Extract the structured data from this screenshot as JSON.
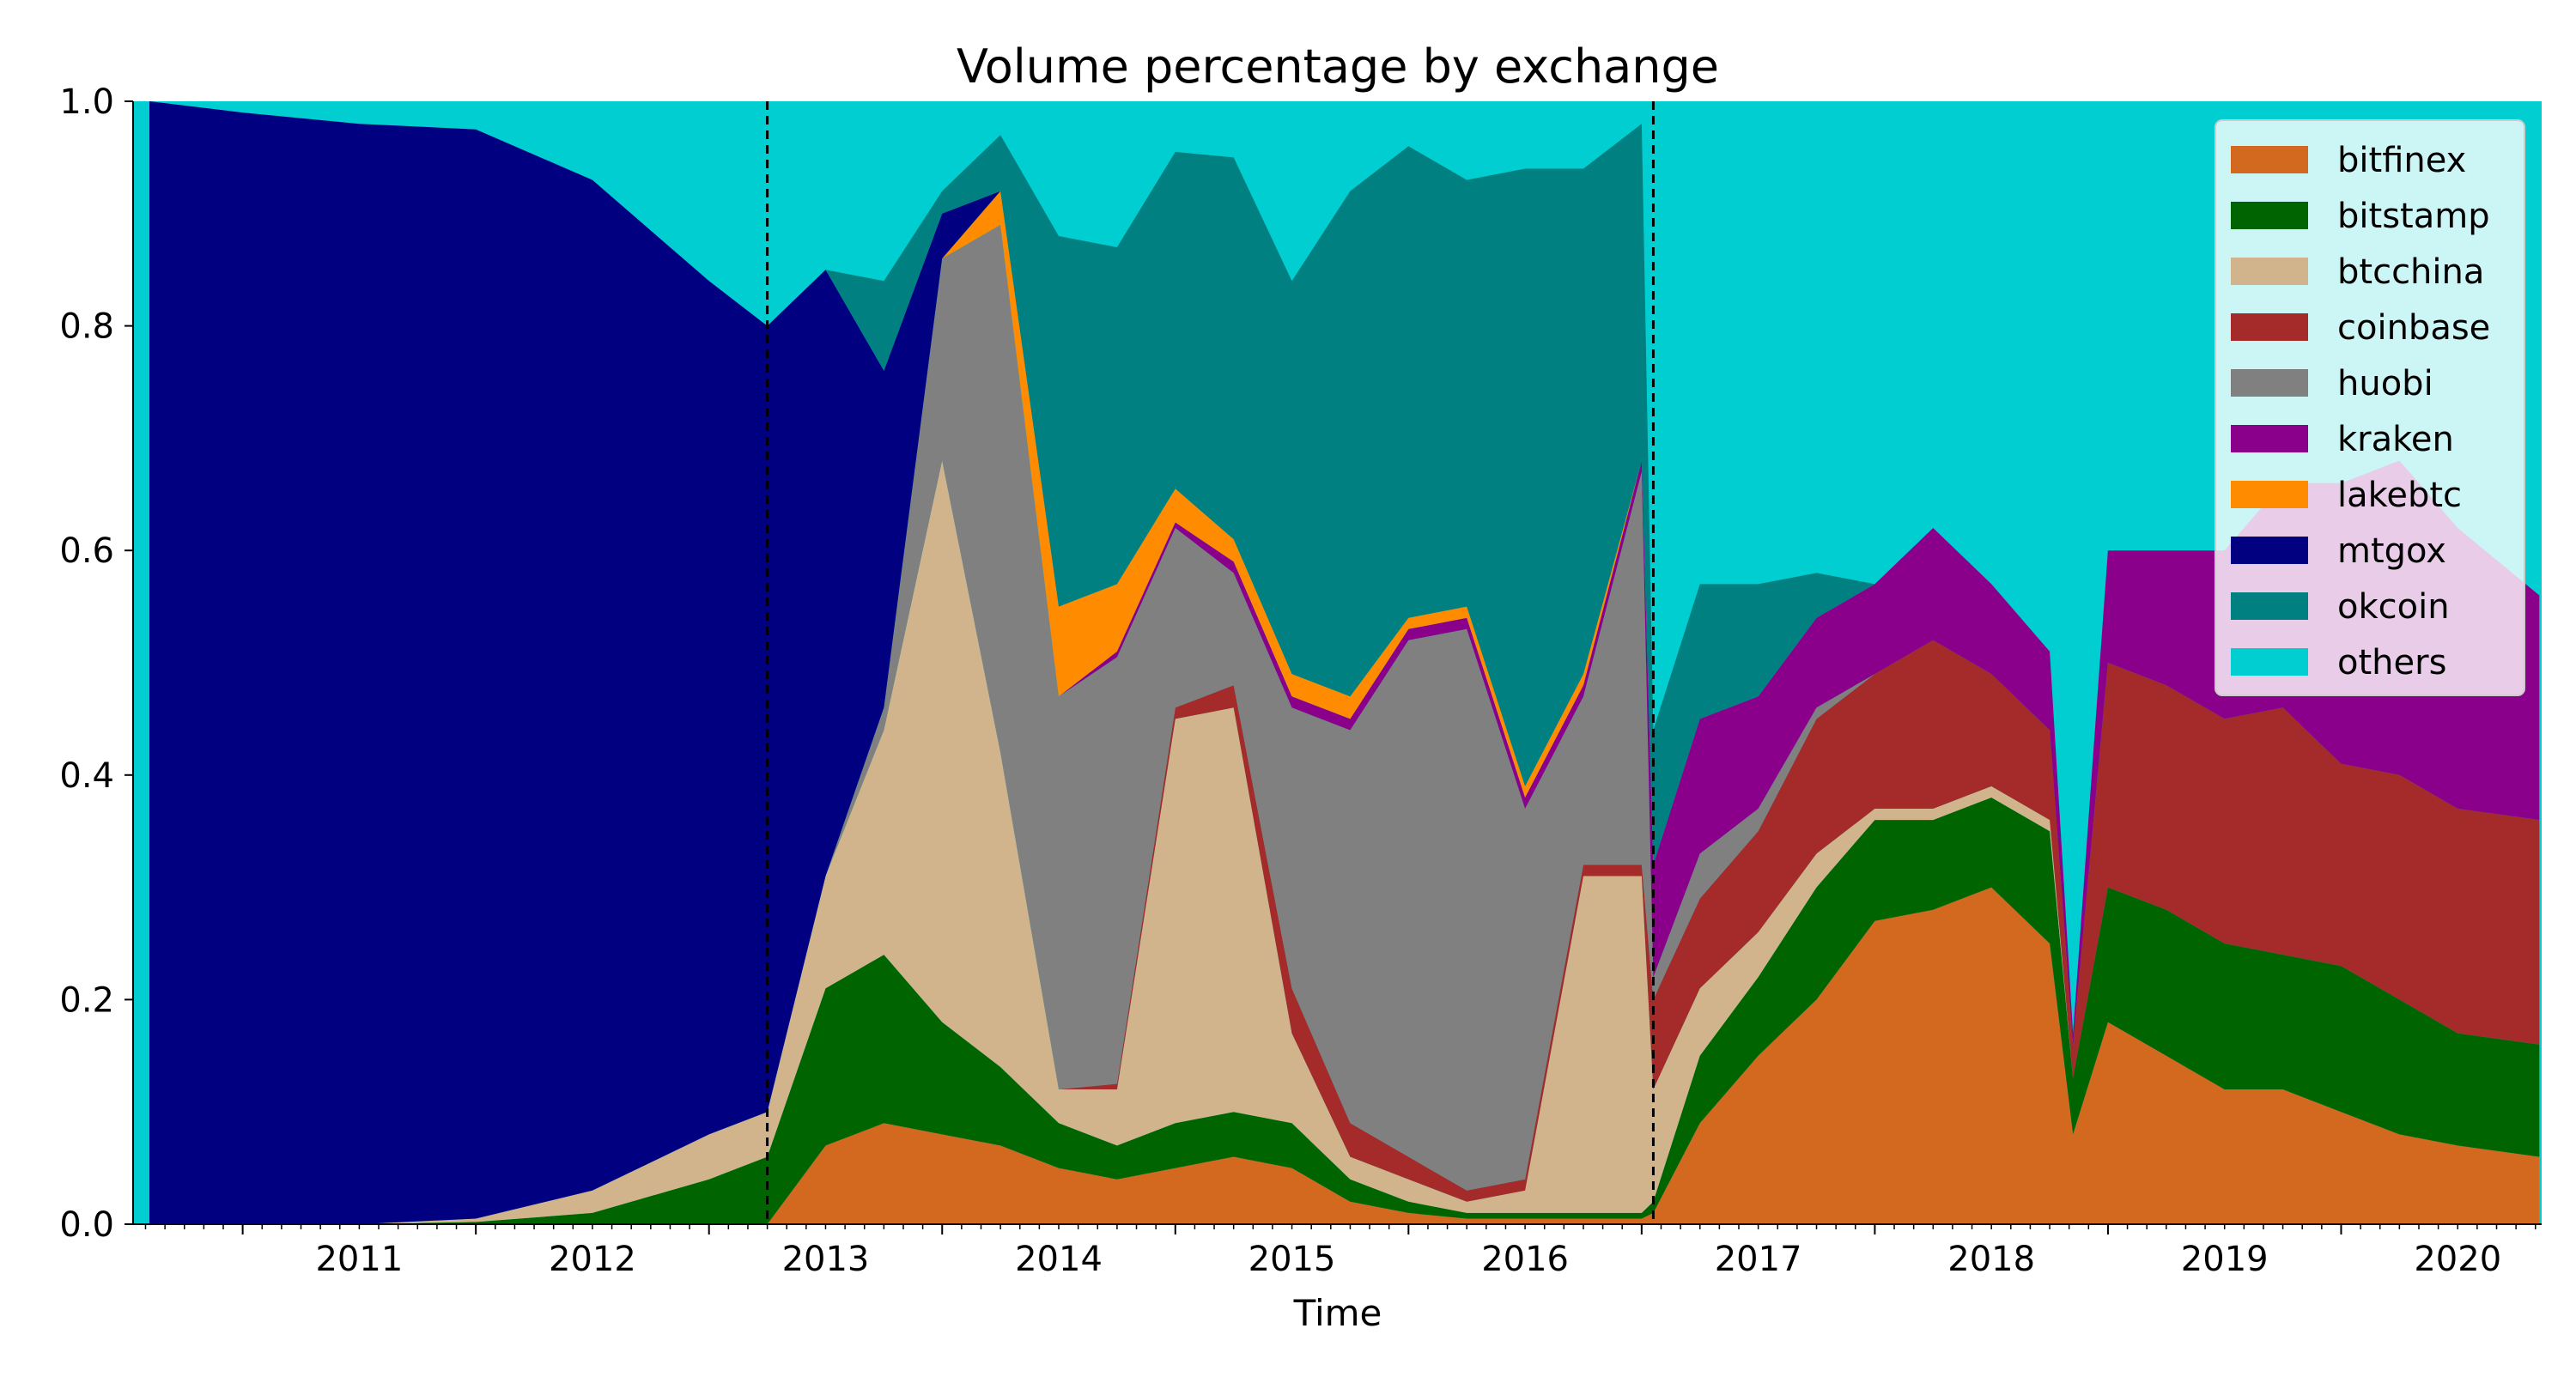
{
  "chart_data": {
    "type": "area",
    "stacked": true,
    "normalized": true,
    "title": "Volume percentage by exchange",
    "xlabel": "Time",
    "ylabel": "",
    "x_ticks": [
      "2011",
      "2012",
      "2013",
      "2014",
      "2015",
      "2016",
      "2017",
      "2018",
      "2019",
      "2020"
    ],
    "y_ticks": [
      "0.0",
      "0.2",
      "0.4",
      "0.6",
      "0.8",
      "1.0"
    ],
    "xlim": [
      2010.53,
      2020.86
    ],
    "ylim": [
      0,
      1
    ],
    "grid": false,
    "legend_position": "top-right",
    "reference_lines": [
      2013.25,
      2017.05
    ],
    "x": [
      2010.6,
      2011.0,
      2011.5,
      2012.0,
      2012.5,
      2013.0,
      2013.25,
      2013.5,
      2013.75,
      2014.0,
      2014.25,
      2014.5,
      2014.75,
      2015.0,
      2015.25,
      2015.5,
      2015.75,
      2016.0,
      2016.25,
      2016.5,
      2016.75,
      2017.0,
      2017.05,
      2017.25,
      2017.5,
      2017.75,
      2018.0,
      2018.25,
      2018.5,
      2018.75,
      2018.85,
      2019.0,
      2019.25,
      2019.5,
      2019.75,
      2020.0,
      2020.25,
      2020.5,
      2020.85
    ],
    "series": [
      {
        "name": "bitfinex",
        "color": "#d2691e",
        "values": [
          0,
          0,
          0,
          0,
          0,
          0,
          0,
          0.07,
          0.09,
          0.08,
          0.07,
          0.05,
          0.04,
          0.05,
          0.06,
          0.05,
          0.02,
          0.01,
          0.005,
          0.005,
          0.005,
          0.005,
          0.01,
          0.09,
          0.15,
          0.2,
          0.27,
          0.28,
          0.3,
          0.25,
          0.08,
          0.18,
          0.15,
          0.12,
          0.12,
          0.1,
          0.08,
          0.07,
          0.06
        ]
      },
      {
        "name": "bitstamp",
        "color": "#006400",
        "values": [
          0,
          0,
          0,
          0.002,
          0.01,
          0.04,
          0.06,
          0.14,
          0.15,
          0.1,
          0.07,
          0.04,
          0.03,
          0.04,
          0.04,
          0.04,
          0.02,
          0.01,
          0.005,
          0.005,
          0.005,
          0.005,
          0.01,
          0.06,
          0.07,
          0.1,
          0.09,
          0.08,
          0.08,
          0.1,
          0.05,
          0.12,
          0.13,
          0.13,
          0.12,
          0.13,
          0.12,
          0.1,
          0.1
        ]
      },
      {
        "name": "btcchina",
        "color": "#d2b48c",
        "values": [
          0,
          0,
          0,
          0.003,
          0.02,
          0.04,
          0.04,
          0.1,
          0.2,
          0.5,
          0.28,
          0.03,
          0.05,
          0.36,
          0.36,
          0.08,
          0.02,
          0.02,
          0.01,
          0.02,
          0.3,
          0.3,
          0.1,
          0.06,
          0.04,
          0.03,
          0.01,
          0.01,
          0.01,
          0.01,
          0.0,
          0.0,
          0.0,
          0.0,
          0.0,
          0.0,
          0.0,
          0.0,
          0.0
        ]
      },
      {
        "name": "coinbase",
        "color": "#a52a2a",
        "values": [
          0,
          0,
          0,
          0,
          0,
          0,
          0,
          0,
          0,
          0,
          0,
          0,
          0.005,
          0.01,
          0.02,
          0.04,
          0.03,
          0.02,
          0.01,
          0.01,
          0.01,
          0.01,
          0.08,
          0.08,
          0.09,
          0.12,
          0.12,
          0.15,
          0.1,
          0.08,
          0.03,
          0.2,
          0.2,
          0.2,
          0.22,
          0.18,
          0.2,
          0.2,
          0.2
        ]
      },
      {
        "name": "huobi",
        "color": "#808080",
        "values": [
          0,
          0,
          0,
          0,
          0,
          0,
          0,
          0,
          0.02,
          0.18,
          0.47,
          0.35,
          0.38,
          0.16,
          0.1,
          0.25,
          0.35,
          0.46,
          0.5,
          0.33,
          0.15,
          0.35,
          0.02,
          0.04,
          0.02,
          0.01,
          0.0,
          0.0,
          0.0,
          0.0,
          0.0,
          0.0,
          0.0,
          0.0,
          0.0,
          0.0,
          0.0,
          0.0,
          0.0
        ]
      },
      {
        "name": "kraken",
        "color": "#8b008b",
        "values": [
          0,
          0,
          0,
          0,
          0,
          0,
          0,
          0,
          0,
          0,
          0,
          0,
          0.005,
          0.005,
          0.01,
          0.01,
          0.01,
          0.01,
          0.01,
          0.01,
          0.01,
          0.01,
          0.1,
          0.12,
          0.1,
          0.08,
          0.08,
          0.1,
          0.08,
          0.07,
          0.01,
          0.1,
          0.12,
          0.15,
          0.2,
          0.25,
          0.28,
          0.25,
          0.2
        ]
      },
      {
        "name": "lakebtc",
        "color": "#ff8c00",
        "values": [
          0,
          0,
          0,
          0,
          0,
          0,
          0,
          0,
          0,
          0,
          0.03,
          0.08,
          0.06,
          0.03,
          0.02,
          0.02,
          0.02,
          0.01,
          0.01,
          0.01,
          0.01,
          0.0,
          0.0,
          0.0,
          0.0,
          0.0,
          0.0,
          0.0,
          0.0,
          0.0,
          0.0,
          0.0,
          0.0,
          0.0,
          0.0,
          0.0,
          0.0,
          0.0,
          0.0
        ]
      },
      {
        "name": "mtgox",
        "color": "#000080",
        "values": [
          1.0,
          0.99,
          0.98,
          0.97,
          0.9,
          0.76,
          0.7,
          0.54,
          0.3,
          0.04,
          0.0,
          0.0,
          0.0,
          0.0,
          0.0,
          0.0,
          0.0,
          0.0,
          0.0,
          0.0,
          0.0,
          0.0,
          0.0,
          0.0,
          0.0,
          0.0,
          0.0,
          0.0,
          0.0,
          0.0,
          0.0,
          0.0,
          0.0,
          0.0,
          0.0,
          0.0,
          0.0,
          0.0,
          0.0
        ]
      },
      {
        "name": "okcoin",
        "color": "#008080",
        "values": [
          0,
          0,
          0,
          0,
          0,
          0,
          0,
          0,
          0.08,
          0.02,
          0.05,
          0.33,
          0.3,
          0.3,
          0.34,
          0.35,
          0.45,
          0.42,
          0.38,
          0.55,
          0.45,
          0.3,
          0.12,
          0.12,
          0.1,
          0.04,
          0.0,
          0.0,
          0.0,
          0.0,
          0.0,
          0.0,
          0.0,
          0.0,
          0.0,
          0.0,
          0.0,
          0.0,
          0.0
        ]
      }
    ]
  },
  "legend_extra": {
    "name": "others",
    "color": "#00ced1"
  }
}
